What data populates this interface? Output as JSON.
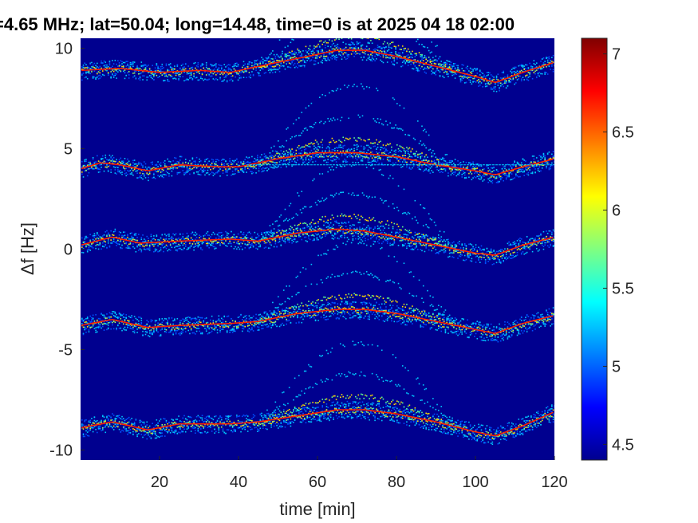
{
  "chart_data": {
    "type": "heatmap",
    "title": "=4.65 MHz;  lat=50.04; long=14.48, time=0 is at 2025 04 18 02:00",
    "xlabel": "time [min]",
    "ylabel": "Δf [Hz]",
    "xlim": [
      0,
      120
    ],
    "ylim": [
      -10.5,
      10.5
    ],
    "xticks": [
      20,
      40,
      60,
      80,
      100,
      120
    ],
    "yticks": [
      -10,
      -5,
      0,
      5,
      10
    ],
    "xtick_labels": [
      "20",
      "40",
      "60",
      "80",
      "100",
      "120"
    ],
    "ytick_labels": [
      "-10",
      "-5",
      "0",
      "5",
      "10"
    ],
    "colorbar": {
      "range": [
        4.4,
        7.1
      ],
      "ticks": [
        4.5,
        5,
        5.5,
        6,
        6.5,
        7
      ],
      "tick_labels": [
        "4.5",
        "5",
        "5.5",
        "6",
        "6.5",
        "7"
      ],
      "colormap": "jet"
    },
    "series": [
      {
        "offset": 9,
        "baseline": [
          [
            0,
            8.9
          ],
          [
            10,
            9.0
          ],
          [
            20,
            8.8
          ],
          [
            30,
            8.9
          ],
          [
            38,
            8.8
          ],
          [
            45,
            9.1
          ],
          [
            55,
            9.5
          ],
          [
            65,
            9.9
          ],
          [
            72,
            9.9
          ],
          [
            80,
            9.6
          ],
          [
            90,
            9.1
          ],
          [
            100,
            8.6
          ],
          [
            105,
            8.3
          ],
          [
            112,
            8.8
          ],
          [
            120,
            9.3
          ]
        ]
      },
      {
        "offset": 4,
        "baseline": [
          [
            0,
            4.0
          ],
          [
            5,
            4.3
          ],
          [
            10,
            4.2
          ],
          [
            17,
            3.9
          ],
          [
            25,
            4.2
          ],
          [
            35,
            4.1
          ],
          [
            40,
            4.1
          ],
          [
            50,
            4.5
          ],
          [
            60,
            4.8
          ],
          [
            70,
            4.8
          ],
          [
            80,
            4.6
          ],
          [
            90,
            4.2
          ],
          [
            100,
            3.9
          ],
          [
            105,
            3.7
          ],
          [
            112,
            4.1
          ],
          [
            120,
            4.5
          ]
        ]
      },
      {
        "offset": 0,
        "baseline": [
          [
            0,
            0.2
          ],
          [
            8,
            0.6
          ],
          [
            15,
            0.3
          ],
          [
            25,
            0.4
          ],
          [
            38,
            0.5
          ],
          [
            45,
            0.4
          ],
          [
            55,
            0.8
          ],
          [
            65,
            1.0
          ],
          [
            72,
            0.9
          ],
          [
            80,
            0.6
          ],
          [
            90,
            0.2
          ],
          [
            100,
            -0.2
          ],
          [
            105,
            -0.3
          ],
          [
            112,
            0.2
          ],
          [
            120,
            0.6
          ]
        ]
      },
      {
        "offset": -4,
        "baseline": [
          [
            0,
            -3.8
          ],
          [
            8,
            -3.5
          ],
          [
            17,
            -3.9
          ],
          [
            25,
            -3.8
          ],
          [
            38,
            -3.7
          ],
          [
            45,
            -3.6
          ],
          [
            55,
            -3.2
          ],
          [
            65,
            -3.0
          ],
          [
            72,
            -3.0
          ],
          [
            80,
            -3.2
          ],
          [
            90,
            -3.6
          ],
          [
            100,
            -4.0
          ],
          [
            105,
            -4.2
          ],
          [
            112,
            -3.7
          ],
          [
            120,
            -3.3
          ]
        ]
      },
      {
        "offset": -9,
        "baseline": [
          [
            0,
            -8.9
          ],
          [
            8,
            -8.6
          ],
          [
            17,
            -9.0
          ],
          [
            25,
            -8.7
          ],
          [
            38,
            -8.7
          ],
          [
            45,
            -8.6
          ],
          [
            55,
            -8.3
          ],
          [
            65,
            -8.0
          ],
          [
            72,
            -8.0
          ],
          [
            80,
            -8.2
          ],
          [
            90,
            -8.6
          ],
          [
            100,
            -9.1
          ],
          [
            105,
            -9.3
          ],
          [
            112,
            -8.8
          ],
          [
            120,
            -8.1
          ]
        ]
      }
    ],
    "harmonic_region": {
      "x_start": 45,
      "x_end": 95,
      "peak_x": 70,
      "harmonic_spacing": [
        0.7,
        1.4,
        2.1
      ]
    },
    "reference_line": {
      "y": 4.2,
      "x_start": 42,
      "x_end": 120
    }
  }
}
